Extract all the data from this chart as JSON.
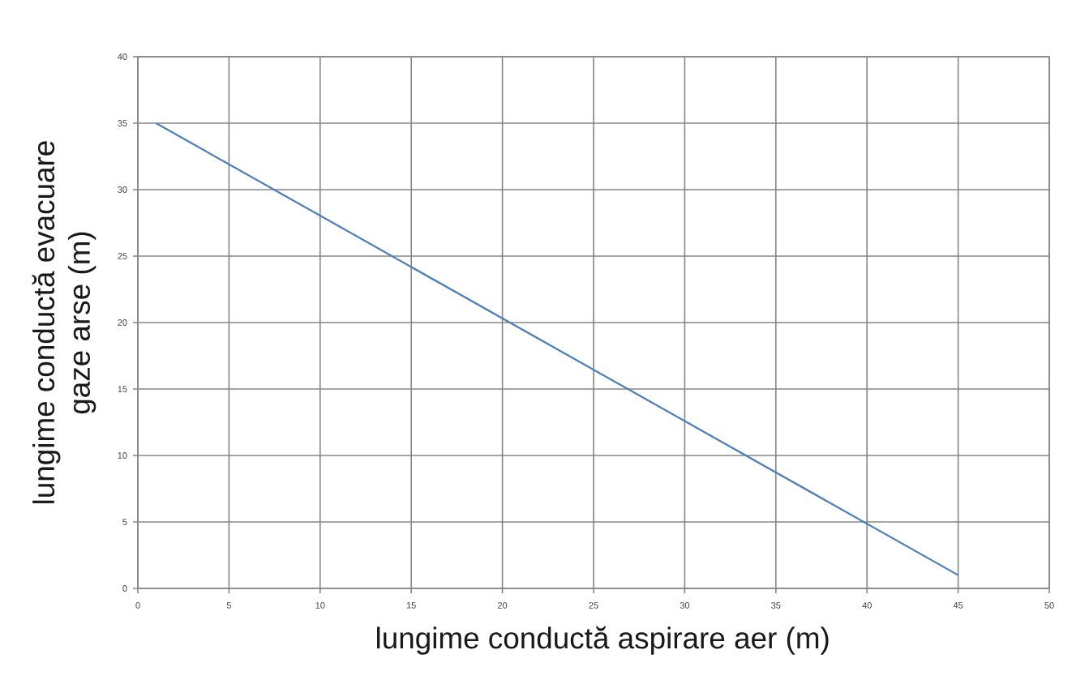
{
  "chart_data": {
    "type": "line",
    "xlabel": "lungime conductă aspirare aer (m)",
    "ylabel": "lungime conductă evacuare gaze arse (m)",
    "x": [
      1,
      45
    ],
    "values": [
      35,
      1
    ],
    "color": "#4a7ebb",
    "line_style": "solid",
    "xlim": [
      0,
      50
    ],
    "ylim": [
      0,
      40
    ],
    "xticks": [
      0,
      5,
      10,
      15,
      20,
      25,
      30,
      35,
      40,
      45,
      50
    ],
    "yticks": [
      0,
      5,
      10,
      15,
      20,
      25,
      30,
      35,
      40
    ],
    "grid": true
  }
}
